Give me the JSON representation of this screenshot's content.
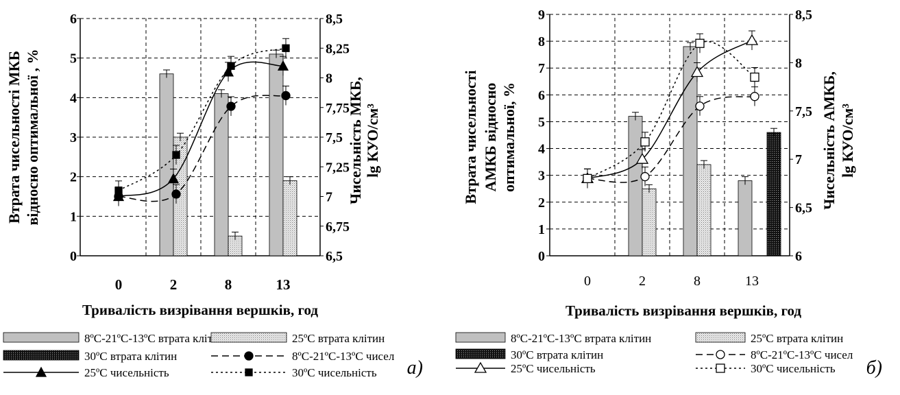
{
  "chart_data": [
    {
      "type": "bar",
      "panel_label": "а)",
      "xlabel": "Тривалість визрівання вершків, год",
      "ylabel_left": [
        "Втрата  чисельності МКБ",
        "відносно оптимальної , %"
      ],
      "ylabel_right": [
        "Чисельність МКБ,",
        "lg КУО/см³"
      ],
      "categories": [
        "0",
        "2",
        "8",
        "13"
      ],
      "ylim_left": [
        0,
        6
      ],
      "yticks_left": [
        "0",
        "1",
        "2",
        "3",
        "4",
        "5",
        "6"
      ],
      "ylim_right": [
        6.5,
        8.5
      ],
      "yticks_right": [
        "6,5",
        "6,75",
        "7",
        "7,25",
        "7,5",
        "7,75",
        "8",
        "8,25",
        "8,5"
      ],
      "grid": true,
      "bar_series": [
        {
          "name": "8ºС-21ºС-13ºС втрата клітин",
          "values": [
            null,
            4.6,
            4.1,
            5.1
          ]
        },
        {
          "name": "25ºС втрата клітин",
          "values": [
            null,
            3.0,
            0.5,
            1.9
          ]
        },
        {
          "name": "30ºС втрата клітин",
          "values": [
            null,
            null,
            null,
            null
          ]
        }
      ],
      "line_series": [
        {
          "name": "8ºС-21ºС-13ºС чисел",
          "values": [
            7.0,
            7.02,
            7.76,
            7.85
          ]
        },
        {
          "name": "25ºС чисельність",
          "values": [
            7.0,
            7.15,
            8.05,
            8.1
          ]
        },
        {
          "name": "30ºС чисельність",
          "values": [
            7.05,
            7.35,
            8.1,
            8.25
          ]
        }
      ],
      "legend": [
        "8ºС-21ºС-13ºС втрата клітин",
        "25ºС втрата клітин",
        "30ºС втрата клітин",
        "8ºС-21ºС-13ºС чисел",
        "25ºС чисельність",
        "30ºС чисельність"
      ],
      "legend_position": "bottom"
    },
    {
      "type": "bar",
      "panel_label": "б)",
      "xlabel": "Тривалість визрівання вершків, год",
      "ylabel_left": [
        "Втрата чисельності",
        "АМКБ відносно",
        "оптимальної, %"
      ],
      "ylabel_right": [
        "Чисельність АМКБ,",
        "lg КУО/см³"
      ],
      "categories": [
        "0",
        "2",
        "8",
        "13"
      ],
      "ylim_left": [
        0,
        9
      ],
      "yticks_left": [
        "0",
        "1",
        "2",
        "3",
        "4",
        "5",
        "6",
        "7",
        "8",
        "9"
      ],
      "ylim_right": [
        6,
        8.5
      ],
      "yticks_right": [
        "6",
        "6,5",
        "7",
        "7,5",
        "8",
        "8,5"
      ],
      "grid": true,
      "bar_series": [
        {
          "name": "8ºС-21ºС-13ºС втрата клітин",
          "values": [
            null,
            5.2,
            7.8,
            2.8
          ]
        },
        {
          "name": "25ºС втрата клітин",
          "values": [
            null,
            2.5,
            3.4,
            null
          ]
        },
        {
          "name": "30ºС втрата клітин",
          "values": [
            null,
            null,
            null,
            4.6
          ]
        }
      ],
      "line_series": [
        {
          "name": "8ºС-21ºС-13ºС чисел",
          "values": [
            6.8,
            6.82,
            7.55,
            7.65
          ]
        },
        {
          "name": "25ºС чисельність",
          "values": [
            6.8,
            7.0,
            7.9,
            8.23
          ]
        },
        {
          "name": "30ºС чисельність",
          "values": [
            6.8,
            7.18,
            8.2,
            7.85
          ]
        }
      ],
      "legend": [
        "8ºС-21ºС-13ºС втрата клітин",
        "25ºС втрата клітин",
        "30ºС втрата клітин",
        "8ºС-21ºС-13ºС чисел",
        "25ºС чисельність",
        "30ºС чисельність"
      ],
      "legend_position": "bottom"
    }
  ]
}
